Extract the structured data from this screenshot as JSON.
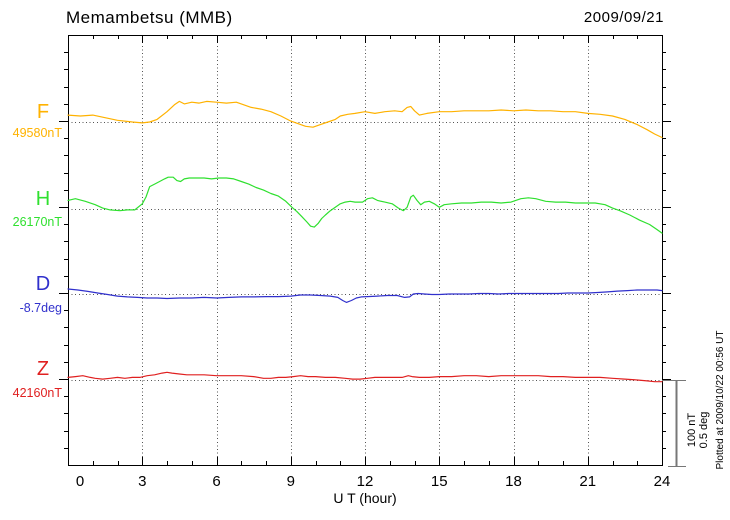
{
  "header": {
    "title": "Memambetsu (MMB)",
    "date": "2009/09/21"
  },
  "xaxis": {
    "label": "U T (hour)",
    "tick_labels": [
      "0",
      "3",
      "6",
      "9",
      "12",
      "15",
      "18",
      "21",
      "24"
    ]
  },
  "scalebar": {
    "line1": "100 nT",
    "line2": "0.5 deg"
  },
  "plotted_note": "Plotted at 2009/10/22 00:56 UT",
  "colors": {
    "F": "#ffb200",
    "H": "#2fe02f",
    "D": "#3030cc",
    "Z": "#e02020",
    "frame": "#000000",
    "dotted": "#555555",
    "scalebar": "#777777"
  },
  "chart_data": {
    "type": "line",
    "title": "Memambetsu (MMB) magnetogram 2009/09/21",
    "xlabel": "U T (hour)",
    "x_range": [
      0,
      24
    ],
    "x_major_ticks": [
      0,
      3,
      6,
      9,
      12,
      15,
      18,
      21,
      24
    ],
    "grid": "vertical dotted at 3-hour marks; dotted horizontal baseline per channel",
    "scale": "100 nT and 0.5 deg per scalebar",
    "series": [
      {
        "name": "F",
        "unit": "nT",
        "baseline": 49580,
        "baseline_label": "49580nT",
        "color": "#ffb200",
        "points": [
          [
            0,
            49588
          ],
          [
            0.5,
            49587
          ],
          [
            1,
            49588
          ],
          [
            1.5,
            49585
          ],
          [
            2,
            49582
          ],
          [
            2.6,
            49580
          ],
          [
            3,
            49579
          ],
          [
            3.3,
            49580
          ],
          [
            3.6,
            49583
          ],
          [
            4,
            49592
          ],
          [
            4.3,
            49600
          ],
          [
            4.5,
            49604
          ],
          [
            4.7,
            49601
          ],
          [
            5,
            49603
          ],
          [
            5.3,
            49602
          ],
          [
            5.6,
            49604
          ],
          [
            6,
            49603
          ],
          [
            6.4,
            49602
          ],
          [
            6.8,
            49603
          ],
          [
            7,
            49601
          ],
          [
            7.4,
            49597
          ],
          [
            7.8,
            49595
          ],
          [
            8.2,
            49592
          ],
          [
            8.6,
            49587
          ],
          [
            9,
            49581
          ],
          [
            9.3,
            49578
          ],
          [
            9.6,
            49575
          ],
          [
            9.9,
            49574
          ],
          [
            10.2,
            49577
          ],
          [
            10.5,
            49580
          ],
          [
            10.8,
            49583
          ],
          [
            11,
            49587
          ],
          [
            11.3,
            49589
          ],
          [
            11.6,
            49590
          ],
          [
            12,
            49592
          ],
          [
            12.4,
            49590
          ],
          [
            12.8,
            49592
          ],
          [
            13.2,
            49593
          ],
          [
            13.5,
            49592
          ],
          [
            13.7,
            49597
          ],
          [
            13.85,
            49598
          ],
          [
            14,
            49593
          ],
          [
            14.2,
            49588
          ],
          [
            14.5,
            49590
          ],
          [
            15,
            49592
          ],
          [
            15.5,
            49592
          ],
          [
            16,
            49593
          ],
          [
            16.5,
            49593
          ],
          [
            17,
            49593
          ],
          [
            17.5,
            49594
          ],
          [
            18,
            49593
          ],
          [
            18.5,
            49594
          ],
          [
            19,
            49593
          ],
          [
            19.5,
            49593
          ],
          [
            20,
            49592
          ],
          [
            20.5,
            49592
          ],
          [
            21,
            49590
          ],
          [
            21.5,
            49589
          ],
          [
            22,
            49587
          ],
          [
            22.5,
            49583
          ],
          [
            23,
            49577
          ],
          [
            23.4,
            49571
          ],
          [
            23.7,
            49566
          ],
          [
            24,
            49562
          ]
        ]
      },
      {
        "name": "H",
        "unit": "nT",
        "baseline": 26170,
        "baseline_label": "26170nT",
        "color": "#2fe02f",
        "points": [
          [
            0,
            26180
          ],
          [
            0.3,
            26182
          ],
          [
            0.7,
            26179
          ],
          [
            1.1,
            26175
          ],
          [
            1.4,
            26171
          ],
          [
            1.7,
            26169
          ],
          [
            2.1,
            26168
          ],
          [
            2.4,
            26169
          ],
          [
            2.7,
            26169
          ],
          [
            3,
            26176
          ],
          [
            3.15,
            26184
          ],
          [
            3.3,
            26196
          ],
          [
            3.5,
            26199
          ],
          [
            3.7,
            26202
          ],
          [
            3.9,
            26205
          ],
          [
            4.05,
            26207
          ],
          [
            4.25,
            26207
          ],
          [
            4.4,
            26203
          ],
          [
            4.55,
            26202
          ],
          [
            4.7,
            26205
          ],
          [
            4.9,
            26206
          ],
          [
            5.2,
            26206
          ],
          [
            5.5,
            26206
          ],
          [
            5.8,
            26205
          ],
          [
            6.1,
            26206
          ],
          [
            6.4,
            26206
          ],
          [
            6.7,
            26205
          ],
          [
            7,
            26202
          ],
          [
            7.3,
            26199
          ],
          [
            7.6,
            26195
          ],
          [
            7.9,
            26192
          ],
          [
            8.2,
            26188
          ],
          [
            8.5,
            26185
          ],
          [
            8.8,
            26179
          ],
          [
            9.05,
            26172
          ],
          [
            9.25,
            26167
          ],
          [
            9.45,
            26161
          ],
          [
            9.65,
            26155
          ],
          [
            9.8,
            26150
          ],
          [
            9.95,
            26149
          ],
          [
            10.1,
            26153
          ],
          [
            10.25,
            26159
          ],
          [
            10.4,
            26163
          ],
          [
            10.6,
            26168
          ],
          [
            10.8,
            26172
          ],
          [
            11,
            26176
          ],
          [
            11.2,
            26178
          ],
          [
            11.4,
            26179
          ],
          [
            11.6,
            26178
          ],
          [
            11.9,
            26178
          ],
          [
            12.1,
            26182
          ],
          [
            12.3,
            26183
          ],
          [
            12.5,
            26180
          ],
          [
            12.8,
            26178
          ],
          [
            13.1,
            26176
          ],
          [
            13.35,
            26171
          ],
          [
            13.55,
            26168
          ],
          [
            13.7,
            26172
          ],
          [
            13.85,
            26184
          ],
          [
            13.95,
            26186
          ],
          [
            14.1,
            26180
          ],
          [
            14.25,
            26175
          ],
          [
            14.4,
            26178
          ],
          [
            14.6,
            26179
          ],
          [
            14.8,
            26176
          ],
          [
            15,
            26172
          ],
          [
            15.2,
            26175
          ],
          [
            15.5,
            26176
          ],
          [
            15.9,
            26177
          ],
          [
            16.3,
            26177
          ],
          [
            16.7,
            26178
          ],
          [
            17.1,
            26178
          ],
          [
            17.5,
            26177
          ],
          [
            17.9,
            26178
          ],
          [
            18.3,
            26182
          ],
          [
            18.6,
            26183
          ],
          [
            18.9,
            26182
          ],
          [
            19.3,
            26179
          ],
          [
            19.7,
            26178
          ],
          [
            20.1,
            26178
          ],
          [
            20.5,
            26177
          ],
          [
            20.9,
            26177
          ],
          [
            21.3,
            26177
          ],
          [
            21.7,
            26175
          ],
          [
            22,
            26171
          ],
          [
            22.3,
            26168
          ],
          [
            22.7,
            26163
          ],
          [
            23.1,
            26157
          ],
          [
            23.5,
            26152
          ],
          [
            23.8,
            26146
          ],
          [
            24,
            26142
          ]
        ]
      },
      {
        "name": "D",
        "unit": "deg",
        "baseline": -8.7,
        "baseline_label": "-8.7deg",
        "color": "#3030cc",
        "points": [
          [
            0,
            -8.671
          ],
          [
            0.4,
            -8.677
          ],
          [
            0.8,
            -8.685
          ],
          [
            1.2,
            -8.694
          ],
          [
            1.6,
            -8.703
          ],
          [
            2,
            -8.712
          ],
          [
            2.4,
            -8.717
          ],
          [
            2.8,
            -8.72
          ],
          [
            3.2,
            -8.723
          ],
          [
            3.6,
            -8.723
          ],
          [
            4,
            -8.726
          ],
          [
            4.5,
            -8.723
          ],
          [
            5,
            -8.723
          ],
          [
            5.5,
            -8.72
          ],
          [
            6,
            -8.723
          ],
          [
            6.5,
            -8.72
          ],
          [
            7,
            -8.717
          ],
          [
            7.5,
            -8.717
          ],
          [
            8,
            -8.715
          ],
          [
            8.5,
            -8.715
          ],
          [
            9,
            -8.712
          ],
          [
            9.4,
            -8.706
          ],
          [
            9.8,
            -8.706
          ],
          [
            10.2,
            -8.709
          ],
          [
            10.6,
            -8.712
          ],
          [
            10.9,
            -8.72
          ],
          [
            11.1,
            -8.738
          ],
          [
            11.25,
            -8.749
          ],
          [
            11.45,
            -8.738
          ],
          [
            11.65,
            -8.723
          ],
          [
            11.85,
            -8.717
          ],
          [
            12.1,
            -8.715
          ],
          [
            12.5,
            -8.712
          ],
          [
            12.9,
            -8.709
          ],
          [
            13.3,
            -8.709
          ],
          [
            13.6,
            -8.72
          ],
          [
            13.8,
            -8.717
          ],
          [
            13.95,
            -8.7
          ],
          [
            14.15,
            -8.697
          ],
          [
            14.4,
            -8.7
          ],
          [
            14.7,
            -8.703
          ],
          [
            15,
            -8.703
          ],
          [
            15.4,
            -8.7
          ],
          [
            15.8,
            -8.7
          ],
          [
            16.2,
            -8.7
          ],
          [
            16.6,
            -8.697
          ],
          [
            17,
            -8.697
          ],
          [
            17.4,
            -8.7
          ],
          [
            17.8,
            -8.697
          ],
          [
            18.2,
            -8.697
          ],
          [
            18.6,
            -8.697
          ],
          [
            19,
            -8.697
          ],
          [
            19.4,
            -8.697
          ],
          [
            19.8,
            -8.697
          ],
          [
            20.2,
            -8.694
          ],
          [
            20.6,
            -8.694
          ],
          [
            21,
            -8.694
          ],
          [
            21.4,
            -8.691
          ],
          [
            21.8,
            -8.688
          ],
          [
            22.2,
            -8.683
          ],
          [
            22.6,
            -8.68
          ],
          [
            23,
            -8.677
          ],
          [
            23.4,
            -8.677
          ],
          [
            23.8,
            -8.677
          ],
          [
            24,
            -8.68
          ]
        ]
      },
      {
        "name": "Z",
        "unit": "nT",
        "baseline": 42160,
        "baseline_label": "42160nT",
        "color": "#e02020",
        "points": [
          [
            0,
            42163
          ],
          [
            0.3,
            42164
          ],
          [
            0.6,
            42165
          ],
          [
            0.9,
            42163
          ],
          [
            1.1,
            42162
          ],
          [
            1.4,
            42161
          ],
          [
            1.7,
            42162
          ],
          [
            2,
            42163
          ],
          [
            2.3,
            42162
          ],
          [
            2.6,
            42163
          ],
          [
            2.9,
            42163
          ],
          [
            3.2,
            42165
          ],
          [
            3.5,
            42166
          ],
          [
            3.8,
            42168
          ],
          [
            4,
            42169
          ],
          [
            4.2,
            42168
          ],
          [
            4.5,
            42167
          ],
          [
            4.8,
            42166
          ],
          [
            5.1,
            42166
          ],
          [
            5.5,
            42166
          ],
          [
            6,
            42165
          ],
          [
            6.5,
            42165
          ],
          [
            7,
            42165
          ],
          [
            7.5,
            42164
          ],
          [
            7.9,
            42162
          ],
          [
            8.2,
            42162
          ],
          [
            8.5,
            42163
          ],
          [
            8.8,
            42163
          ],
          [
            9.1,
            42164
          ],
          [
            9.4,
            42165
          ],
          [
            9.7,
            42164
          ],
          [
            10,
            42164
          ],
          [
            10.4,
            42163
          ],
          [
            10.8,
            42163
          ],
          [
            11.2,
            42162
          ],
          [
            11.5,
            42161
          ],
          [
            11.8,
            42161
          ],
          [
            12.1,
            42162
          ],
          [
            12.4,
            42163
          ],
          [
            12.8,
            42163
          ],
          [
            13.2,
            42163
          ],
          [
            13.5,
            42163
          ],
          [
            13.75,
            42165
          ],
          [
            13.9,
            42164
          ],
          [
            14.2,
            42163
          ],
          [
            14.6,
            42163
          ],
          [
            15,
            42164
          ],
          [
            15.5,
            42164
          ],
          [
            16,
            42165
          ],
          [
            16.5,
            42165
          ],
          [
            17,
            42164
          ],
          [
            17.5,
            42165
          ],
          [
            18,
            42165
          ],
          [
            18.5,
            42165
          ],
          [
            19,
            42165
          ],
          [
            19.5,
            42164
          ],
          [
            20,
            42164
          ],
          [
            20.5,
            42163
          ],
          [
            21,
            42163
          ],
          [
            21.5,
            42163
          ],
          [
            22,
            42162
          ],
          [
            22.5,
            42161
          ],
          [
            23,
            42160
          ],
          [
            23.4,
            42159
          ],
          [
            23.7,
            42158
          ],
          [
            24,
            42158
          ]
        ]
      }
    ]
  }
}
